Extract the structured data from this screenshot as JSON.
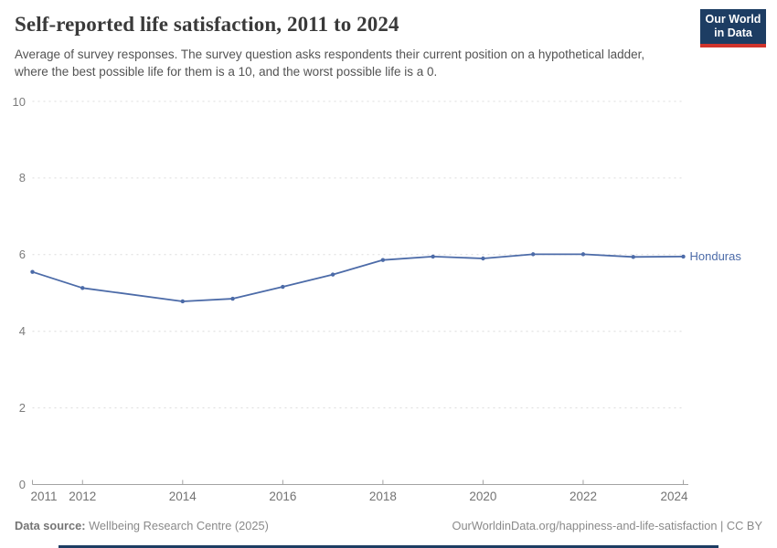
{
  "header": {
    "title": "Self-reported life satisfaction, 2011 to 2024",
    "subtitle": "Average of survey responses. The survey question asks respondents their current position on a hypothetical ladder, where the best possible life for them is a 10, and the worst possible life is a 0.",
    "logo": {
      "line1": "Our World",
      "line2": "in Data",
      "bg_color": "#1d3d63",
      "accent_color": "#d0342c"
    }
  },
  "chart_data": {
    "type": "line",
    "title": "Self-reported life satisfaction, 2011 to 2024",
    "x": [
      2011,
      2012,
      2014,
      2015,
      2016,
      2017,
      2018,
      2019,
      2020,
      2021,
      2022,
      2023,
      2024
    ],
    "series": [
      {
        "name": "Honduras",
        "color": "#4c6ba8",
        "values": [
          5.55,
          5.13,
          4.78,
          4.85,
          5.16,
          5.48,
          5.86,
          5.95,
          5.9,
          6.01,
          6.01,
          5.94,
          5.95
        ]
      }
    ],
    "ylim": [
      0,
      10
    ],
    "yticks": [
      0,
      2,
      4,
      6,
      8,
      10
    ],
    "xticks": [
      2011,
      2012,
      2014,
      2016,
      2018,
      2020,
      2022,
      2024
    ],
    "xlabel": "",
    "ylabel": "",
    "grid": "horizontal-dashed",
    "legend_position": "line-end-label",
    "colors": {
      "grid": "#dcdcdc",
      "axis": "#a3a3a3",
      "tick_text": "#7c7c7c"
    }
  },
  "footer": {
    "source_label": "Data source:",
    "source_value": " Wellbeing Research Centre (2025)",
    "credit": "OurWorldinData.org/happiness-and-life-satisfaction | CC BY"
  }
}
